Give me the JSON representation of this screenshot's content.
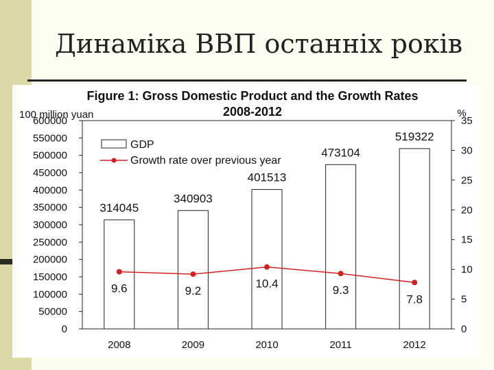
{
  "slide": {
    "title": "Динаміка ВВП останніх років"
  },
  "chart_data": {
    "type": "bar",
    "title": "Figure 1: Gross Domestic Product and the Growth Rates",
    "subtitle": "2008-2012",
    "left_unit": "100 million yuan",
    "right_unit": "%",
    "categories": [
      "2008",
      "2009",
      "2010",
      "2011",
      "2012"
    ],
    "series": [
      {
        "name": "GDP",
        "kind": "bar",
        "axis": "left",
        "values": [
          314045,
          340903,
          401513,
          473104,
          519322
        ],
        "labels": [
          "314045",
          "340903",
          "401513",
          "473104",
          "519322"
        ]
      },
      {
        "name": "Growth rate over previous year",
        "kind": "line",
        "axis": "right",
        "color": "#d42020",
        "values": [
          9.6,
          9.2,
          10.4,
          9.3,
          7.8
        ],
        "labels": [
          "9.6",
          "9.2",
          "10.4",
          "9.3",
          "7.8"
        ]
      }
    ],
    "ylim_left": [
      0,
      600000
    ],
    "yticks_left": [
      "0",
      "50000",
      "100000",
      "150000",
      "200000",
      "250000",
      "300000",
      "350000",
      "400000",
      "450000",
      "500000",
      "550000",
      "600000"
    ],
    "ylim_right": [
      0,
      35
    ],
    "yticks_right": [
      "0",
      "5",
      "10",
      "15",
      "20",
      "25",
      "30",
      "35"
    ],
    "legend_position": "top-left",
    "grid": false
  }
}
